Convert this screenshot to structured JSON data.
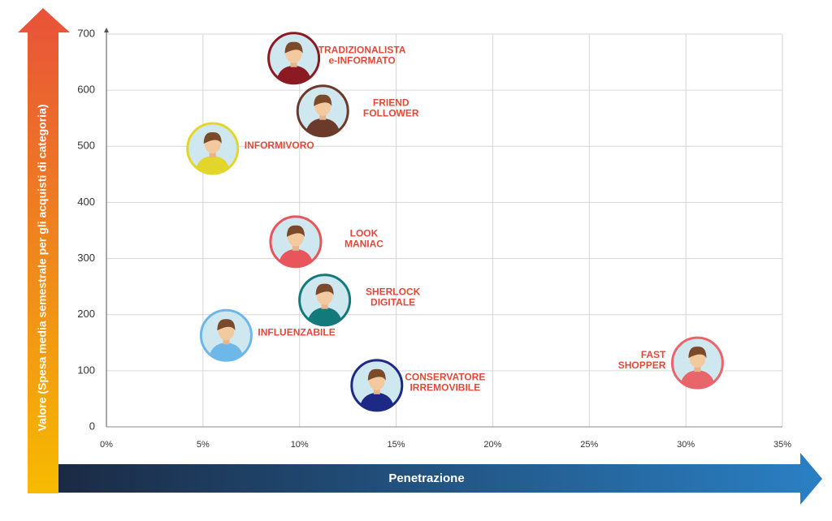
{
  "chart_data": {
    "type": "scatter",
    "x_label": "Penetrazione",
    "y_label": "Valore (Spesa media semestrale per gli acquisti di categoria)",
    "xlim": [
      0,
      35
    ],
    "ylim": [
      0,
      700
    ],
    "xticks": [
      {
        "value": 0,
        "label": "0%"
      },
      {
        "value": 5,
        "label": "5%"
      },
      {
        "value": 10,
        "label": "10%"
      },
      {
        "value": 15,
        "label": "15%"
      },
      {
        "value": 20,
        "label": "20%"
      },
      {
        "value": 25,
        "label": "25%"
      },
      {
        "value": 30,
        "label": "30%"
      },
      {
        "value": 35,
        "label": "35%"
      }
    ],
    "yticks": [
      0,
      100,
      200,
      300,
      400,
      500,
      600,
      700
    ],
    "grid": true,
    "points": [
      {
        "label": [
          "TRADIZIONALISTA",
          "e-INFORMATO"
        ],
        "x": 9.7,
        "y": 657,
        "color": "#8b1a22"
      },
      {
        "label": [
          "FRIEND",
          "FOLLOWER"
        ],
        "x": 11.2,
        "y": 563,
        "color": "#6b3a2a"
      },
      {
        "label": [
          "INFORMIVORO"
        ],
        "x": 5.5,
        "y": 496,
        "color": "#e3d62a"
      },
      {
        "label": [
          "LOOK",
          "MANIAC"
        ],
        "x": 9.8,
        "y": 330,
        "color": "#e8555a"
      },
      {
        "label": [
          "SHERLOCK",
          "DIGITALE"
        ],
        "x": 11.3,
        "y": 226,
        "color": "#127a7a"
      },
      {
        "label": [
          "INFLUENZABILE"
        ],
        "x": 6.2,
        "y": 163,
        "color": "#6db8e8"
      },
      {
        "label": [
          "CONSERVATORE",
          "IRREMOVIBILE"
        ],
        "x": 14.0,
        "y": 74,
        "color": "#1c2a86"
      },
      {
        "label": [
          "FAST",
          "SHOPPER"
        ],
        "x": 30.6,
        "y": 114,
        "color": "#e8656a"
      }
    ]
  }
}
